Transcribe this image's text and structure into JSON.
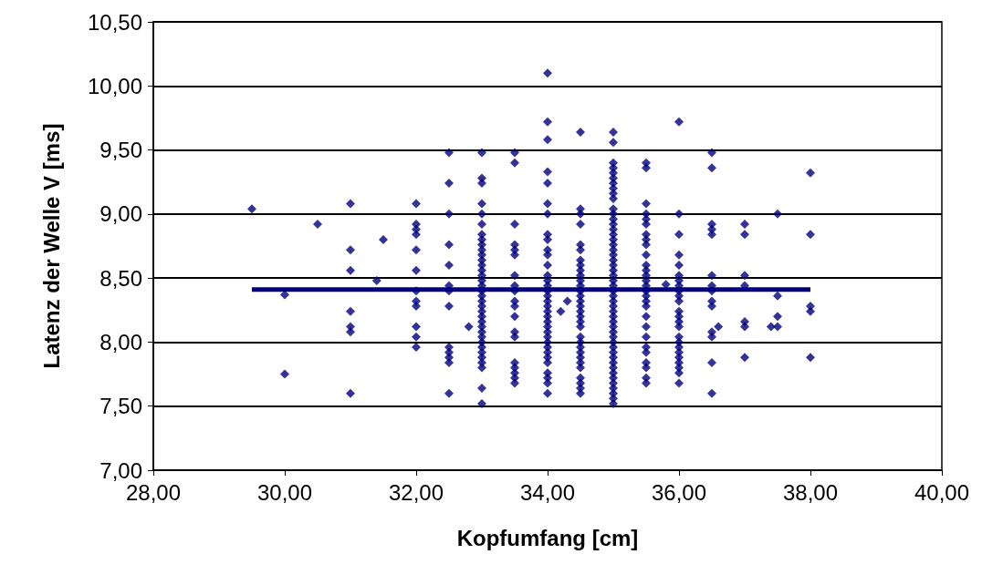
{
  "chart_data": {
    "type": "scatter",
    "xlabel": "Kopfumfang [cm]",
    "ylabel": "Latenz der Welle V [ms]",
    "marker": "diamond",
    "grid": "y",
    "xlim": [
      28,
      40
    ],
    "ylim": [
      7,
      10.5
    ],
    "xticks": [
      {
        "value": 28,
        "label": "28,00"
      },
      {
        "value": 30,
        "label": "30,00"
      },
      {
        "value": 32,
        "label": "32,00"
      },
      {
        "value": 34,
        "label": "34,00"
      },
      {
        "value": 36,
        "label": "36,00"
      },
      {
        "value": 38,
        "label": "38,00"
      },
      {
        "value": 40,
        "label": "40,00"
      }
    ],
    "yticks": [
      {
        "value": 7,
        "label": "7,00"
      },
      {
        "value": 7.5,
        "label": "7,50"
      },
      {
        "value": 8,
        "label": "8,00"
      },
      {
        "value": 8.5,
        "label": "8,50"
      },
      {
        "value": 9,
        "label": "9,00"
      },
      {
        "value": 9.5,
        "label": "9,50"
      },
      {
        "value": 10,
        "label": "10,00"
      },
      {
        "value": 10.5,
        "label": "10,50"
      }
    ],
    "series": [
      {
        "color": "#000080",
        "x": [
          29.5,
          30,
          30,
          30.5,
          31,
          31,
          31,
          31,
          31,
          31,
          31,
          31.4,
          31.5,
          32,
          32,
          32,
          32,
          32,
          32,
          32,
          32,
          32,
          32,
          32,
          32,
          32.5,
          32.5,
          32.5,
          32.5,
          32.5,
          32.5,
          32.5,
          32.5,
          32.5,
          32.5,
          32.5,
          32.5,
          32.5,
          32.8,
          33,
          33,
          33,
          33,
          33,
          33,
          33,
          33,
          33,
          33,
          33,
          33,
          33,
          33,
          33,
          33,
          33,
          33,
          33,
          33,
          33,
          33,
          33,
          33,
          33,
          33,
          33,
          33,
          33,
          33,
          33,
          33,
          33,
          33,
          33,
          33.5,
          33.5,
          33.5,
          33.5,
          33.5,
          33.5,
          33.5,
          33.5,
          33.5,
          33.5,
          33.5,
          33.5,
          33.5,
          33.5,
          33.5,
          33.5,
          33.5,
          33.5,
          33.5,
          34,
          34,
          34,
          34,
          34,
          34,
          34,
          34,
          34,
          34,
          34,
          34,
          34,
          34,
          34,
          34,
          34,
          34,
          34,
          34,
          34,
          34,
          34,
          34,
          34,
          34,
          34,
          34,
          34,
          34,
          34,
          34,
          34,
          34,
          34.2,
          34.3,
          34.5,
          34.5,
          34.5,
          34.5,
          34.5,
          34.5,
          34.5,
          34.5,
          34.5,
          34.5,
          34.5,
          34.5,
          34.5,
          34.5,
          34.5,
          34.5,
          34.5,
          34.5,
          34.5,
          34.5,
          34.5,
          34.5,
          34.5,
          34.5,
          34.5,
          34.5,
          34.5,
          34.5,
          34.5,
          34.5,
          34.5,
          35,
          35,
          35,
          35,
          35,
          35,
          35,
          35,
          35,
          35,
          35,
          35,
          35,
          35,
          35,
          35,
          35,
          35,
          35,
          35,
          35,
          35,
          35,
          35,
          35,
          35,
          35,
          35,
          35,
          35,
          35,
          35,
          35,
          35,
          35,
          35,
          35,
          35,
          35,
          35,
          35,
          35,
          35,
          35,
          35,
          35,
          35,
          35,
          35,
          35.5,
          35.5,
          35.5,
          35.5,
          35.5,
          35.5,
          35.5,
          35.5,
          35.5,
          35.5,
          35.5,
          35.5,
          35.5,
          35.5,
          35.5,
          35.5,
          35.5,
          35.5,
          35.5,
          35.5,
          35.5,
          35.5,
          35.5,
          35.5,
          35.5,
          35.5,
          35.5,
          35.5,
          35.8,
          36,
          36,
          36,
          36,
          36,
          36,
          36,
          36,
          36,
          36,
          36,
          36,
          36,
          36,
          36,
          36,
          36,
          36,
          36,
          36,
          36,
          36,
          36,
          36,
          36.5,
          36.5,
          36.5,
          36.5,
          36.5,
          36.5,
          36.5,
          36.5,
          36.5,
          36.5,
          36.5,
          36.5,
          36.5,
          36.5,
          36.6,
          37,
          37,
          37,
          37,
          37,
          37,
          37,
          37.4,
          37.5,
          37.5,
          37.5,
          37.5,
          38,
          38,
          38,
          38,
          38
        ],
        "values": [
          9.04,
          8.37,
          7.75,
          8.92,
          9.08,
          8.72,
          8.56,
          8.24,
          8.12,
          8.08,
          7.6,
          8.48,
          8.8,
          9.08,
          8.92,
          8.88,
          8.84,
          8.72,
          8.56,
          8.4,
          8.32,
          8.28,
          8.12,
          8.04,
          7.96,
          9.48,
          9.24,
          9,
          8.76,
          8.6,
          8.44,
          8.4,
          8.28,
          7.96,
          7.92,
          7.88,
          7.84,
          7.6,
          8.12,
          9.48,
          9.28,
          9.24,
          9.08,
          9,
          8.92,
          8.84,
          8.8,
          8.76,
          8.72,
          8.68,
          8.64,
          8.6,
          8.56,
          8.52,
          8.48,
          8.44,
          8.4,
          8.36,
          8.32,
          8.28,
          8.24,
          8.2,
          8.16,
          8.12,
          8.08,
          8.04,
          8,
          7.96,
          7.92,
          7.88,
          7.84,
          7.8,
          7.64,
          7.52,
          9.48,
          9.4,
          8.92,
          8.76,
          8.72,
          8.68,
          8.52,
          8.44,
          8.4,
          8.32,
          8.28,
          8.2,
          8.08,
          8.04,
          7.84,
          7.8,
          7.76,
          7.72,
          7.68,
          10.1,
          9.72,
          9.58,
          9.33,
          9.24,
          9.08,
          9,
          8.84,
          8.8,
          8.72,
          8.68,
          8.6,
          8.52,
          8.48,
          8.44,
          8.4,
          8.36,
          8.32,
          8.28,
          8.24,
          8.2,
          8.16,
          8.12,
          8.08,
          8.04,
          8,
          7.96,
          7.92,
          7.88,
          7.84,
          7.76,
          7.72,
          7.68,
          7.6,
          8.24,
          8.32,
          9.64,
          9.04,
          9,
          8.92,
          8.76,
          8.72,
          8.64,
          8.6,
          8.56,
          8.52,
          8.48,
          8.44,
          8.4,
          8.36,
          8.32,
          8.28,
          8.24,
          8.2,
          8.16,
          8.12,
          8.04,
          8,
          7.96,
          7.92,
          7.88,
          7.84,
          7.8,
          7.72,
          7.68,
          7.64,
          7.6,
          9.64,
          9.56,
          9.4,
          9.36,
          9.32,
          9.28,
          9.24,
          9.2,
          9.16,
          9.12,
          9.04,
          9,
          8.96,
          8.92,
          8.88,
          8.84,
          8.8,
          8.76,
          8.72,
          8.68,
          8.64,
          8.6,
          8.56,
          8.52,
          8.48,
          8.44,
          8.4,
          8.36,
          8.32,
          8.28,
          8.24,
          8.2,
          8.16,
          8.12,
          8.08,
          8.04,
          8,
          7.96,
          7.92,
          7.88,
          7.84,
          7.8,
          7.76,
          7.72,
          7.68,
          7.64,
          7.6,
          7.56,
          7.52,
          9.4,
          9.36,
          9.08,
          9,
          8.96,
          8.92,
          8.84,
          8.8,
          8.76,
          8.68,
          8.6,
          8.56,
          8.52,
          8.48,
          8.44,
          8.4,
          8.36,
          8.32,
          8.28,
          8.2,
          8.12,
          8.04,
          7.96,
          7.92,
          7.84,
          7.8,
          7.72,
          7.68,
          8.45,
          9.72,
          9,
          8.84,
          8.68,
          8.6,
          8.52,
          8.48,
          8.44,
          8.4,
          8.36,
          8.32,
          8.24,
          8.2,
          8.16,
          8.12,
          8.04,
          8,
          7.96,
          7.92,
          7.88,
          7.84,
          7.8,
          7.76,
          7.68,
          9.48,
          9.36,
          8.92,
          8.88,
          8.84,
          8.52,
          8.44,
          8.4,
          8.32,
          8.28,
          8.08,
          8.04,
          7.84,
          7.6,
          8.12,
          8.92,
          8.84,
          8.52,
          8.44,
          8.16,
          8.12,
          7.88,
          8.12,
          9,
          8.36,
          8.2,
          8.12,
          9.32,
          8.84,
          8.28,
          8.24,
          7.88
        ]
      },
      {
        "type": "line",
        "color": "#000080",
        "marker": "none",
        "line_style": "solid",
        "x": [
          29.5,
          38
        ],
        "values": [
          8.41,
          8.41
        ]
      }
    ]
  }
}
